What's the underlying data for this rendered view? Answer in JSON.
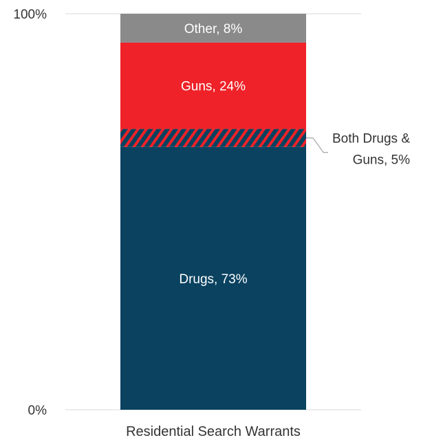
{
  "chart_data": {
    "type": "bar",
    "stacked": true,
    "categories": [
      "Residential Search Warrants"
    ],
    "y_ticks": [
      "0%",
      "100%"
    ],
    "ylim": [
      0,
      100
    ],
    "grid": true,
    "series": [
      {
        "name": "Drugs",
        "value": 73,
        "color": "#0a4260",
        "label": "Drugs, 73%"
      },
      {
        "name": "Both Drugs & Guns",
        "value": 5,
        "color": "#0a4260",
        "hatch_color": "#ee2228",
        "label_lines": [
          "Both Drugs &",
          "Guns, 5%"
        ]
      },
      {
        "name": "Guns",
        "value": 24,
        "color": "#ee2228",
        "label": "Guns, 24%"
      },
      {
        "name": "Other",
        "value": 8,
        "color": "#8a8a8a",
        "label": "Other, 8%"
      }
    ]
  }
}
